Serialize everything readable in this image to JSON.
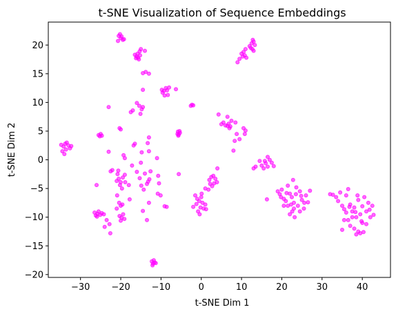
{
  "chart_data": {
    "type": "scatter",
    "title": "t-SNE Visualization of Sequence Embeddings",
    "xlabel": "t-SNE Dim 1",
    "ylabel": "t-SNE Dim 2",
    "xlim": [
      -38,
      47
    ],
    "ylim": [
      -20.5,
      24
    ],
    "xticks": [
      -30,
      -20,
      -10,
      0,
      10,
      20,
      30,
      40
    ],
    "yticks": [
      -20,
      -15,
      -10,
      -5,
      0,
      5,
      10,
      15,
      20
    ],
    "grid": false,
    "marker_color": "#ff00ff",
    "marker_alpha": 0.6,
    "points": [
      [
        -34.5,
        1.5
      ],
      [
        -34.2,
        2.3
      ],
      [
        -33.8,
        2.8
      ],
      [
        -33.4,
        3.0
      ],
      [
        -33.0,
        2.5
      ],
      [
        -32.6,
        2.0
      ],
      [
        -34.0,
        1.0
      ],
      [
        -33.6,
        1.8
      ],
      [
        -32.3,
        2.4
      ],
      [
        -34.8,
        2.6
      ],
      [
        -25.5,
        4.3
      ],
      [
        -25.0,
        4.5
      ],
      [
        -24.7,
        4.2
      ],
      [
        -25.2,
        4.1
      ],
      [
        -23.0,
        9.2
      ],
      [
        -23.0,
        1.4
      ],
      [
        -22.5,
        -2.0
      ],
      [
        -22.1,
        -1.8
      ],
      [
        -23.5,
        -10.5
      ],
      [
        -22.8,
        -11.2
      ],
      [
        -22.6,
        -12.8
      ],
      [
        -24.0,
        -11.7
      ],
      [
        -26.5,
        -9.2
      ],
      [
        -26.2,
        -9.7
      ],
      [
        -25.8,
        -9.4
      ],
      [
        -25.5,
        -9.0
      ],
      [
        -25.1,
        -9.6
      ],
      [
        -24.7,
        -9.3
      ],
      [
        -24.2,
        -9.5
      ],
      [
        -25.9,
        -9.9
      ],
      [
        -26.0,
        -4.4
      ],
      [
        -20.5,
        21.6
      ],
      [
        -20.0,
        21.2
      ],
      [
        -19.5,
        20.9
      ],
      [
        -20.2,
        21.9
      ],
      [
        -19.8,
        21.5
      ],
      [
        -19.2,
        21.0
      ],
      [
        -20.7,
        20.7
      ],
      [
        -20.3,
        5.5
      ],
      [
        -20.0,
        5.3
      ],
      [
        -19.3,
        0.8
      ],
      [
        -19.0,
        0.3
      ],
      [
        -20.8,
        -2.5
      ],
      [
        -20.5,
        -3.3
      ],
      [
        -20.0,
        -3.9
      ],
      [
        -19.5,
        -3.1
      ],
      [
        -20.2,
        -4.4
      ],
      [
        -19.0,
        -2.6
      ],
      [
        -19.7,
        -5.0
      ],
      [
        -21.0,
        -3.7
      ],
      [
        -20.6,
        -1.9
      ],
      [
        -18.9,
        -3.9
      ],
      [
        -20.9,
        -6.2
      ],
      [
        -20.4,
        -7.5
      ],
      [
        -20.0,
        -8.0
      ],
      [
        -19.6,
        -7.8
      ],
      [
        -21.0,
        -8.5
      ],
      [
        -20.3,
        -9.8
      ],
      [
        -19.8,
        -10.1
      ],
      [
        -19.4,
        -9.5
      ],
      [
        -20.0,
        -10.6
      ],
      [
        -19.1,
        -10.3
      ],
      [
        -18.0,
        -4.4
      ],
      [
        -17.8,
        -6.9
      ],
      [
        -17.5,
        8.3
      ],
      [
        -17.0,
        8.6
      ],
      [
        -16.5,
        2.8
      ],
      [
        -16.8,
        2.5
      ],
      [
        -17.2,
        -1.0
      ],
      [
        -16.0,
        -2.1
      ],
      [
        -16.5,
        18.3
      ],
      [
        -16.1,
        18.0
      ],
      [
        -15.7,
        17.8
      ],
      [
        -15.2,
        18.2
      ],
      [
        -15.5,
        17.5
      ],
      [
        -16.2,
        17.7
      ],
      [
        -15.8,
        18.5
      ],
      [
        -15.0,
        19.3
      ],
      [
        -15.3,
        18.9
      ],
      [
        -14.0,
        19.0
      ],
      [
        -13.8,
        15.3
      ],
      [
        -14.5,
        15.1
      ],
      [
        -16.0,
        9.9
      ],
      [
        -15.4,
        9.4
      ],
      [
        -14.8,
        8.8
      ],
      [
        -14.5,
        9.2
      ],
      [
        -15.1,
        8.0
      ],
      [
        -14.5,
        12.2
      ],
      [
        -13.0,
        15.0
      ],
      [
        -13.0,
        3.9
      ],
      [
        -13.3,
        2.9
      ],
      [
        -13.0,
        1.5
      ],
      [
        -14.8,
        1.3
      ],
      [
        -15.0,
        -0.5
      ],
      [
        -14.0,
        -2.4
      ],
      [
        -13.2,
        -3.8
      ],
      [
        -12.9,
        -3.4
      ],
      [
        -13.5,
        -4.2
      ],
      [
        -14.3,
        -5.2
      ],
      [
        -12.6,
        -2.0
      ],
      [
        -13.0,
        -7.5
      ],
      [
        -14.5,
        -8.9
      ],
      [
        -13.5,
        -10.5
      ],
      [
        -14.9,
        -4.5
      ],
      [
        -15.3,
        -3.2
      ],
      [
        -10.7,
        -2.8
      ],
      [
        -10.5,
        -4.1
      ],
      [
        -11.0,
        0.3
      ],
      [
        -10.8,
        -5.9
      ],
      [
        -10.1,
        -6.2
      ],
      [
        -9.1,
        -8.1
      ],
      [
        -8.6,
        -8.2
      ],
      [
        -12.3,
        -17.7
      ],
      [
        -12.0,
        -18.1
      ],
      [
        -11.6,
        -17.9
      ],
      [
        -12.1,
        -18.4
      ],
      [
        -11.3,
        -18.0
      ],
      [
        -11.8,
        -17.5
      ],
      [
        -9.8,
        12.2
      ],
      [
        -9.3,
        12.0
      ],
      [
        -8.8,
        12.5
      ],
      [
        -8.5,
        12.1
      ],
      [
        -9.1,
        11.2
      ],
      [
        -8.3,
        11.3
      ],
      [
        -9.6,
        11.7
      ],
      [
        -8.0,
        12.6
      ],
      [
        -6.3,
        12.3
      ],
      [
        -5.8,
        4.9
      ],
      [
        -5.6,
        4.4
      ],
      [
        -5.3,
        4.7
      ],
      [
        -5.7,
        4.2
      ],
      [
        -5.4,
        5.0
      ],
      [
        -5.9,
        4.5
      ],
      [
        -5.6,
        -2.5
      ],
      [
        -2.3,
        9.6
      ],
      [
        -2.0,
        9.5
      ],
      [
        -2.6,
        9.4
      ],
      [
        -1.5,
        -6.2
      ],
      [
        -1.0,
        -6.8
      ],
      [
        -0.5,
        -7.2
      ],
      [
        0.0,
        -6.5
      ],
      [
        0.3,
        -7.5
      ],
      [
        -0.2,
        -8.3
      ],
      [
        0.6,
        -8.5
      ],
      [
        -0.8,
        -9.0
      ],
      [
        1.0,
        -7.8
      ],
      [
        -1.2,
        -7.7
      ],
      [
        0.1,
        -5.9
      ],
      [
        -0.4,
        -9.5
      ],
      [
        1.2,
        -8.6
      ],
      [
        2.0,
        -3.5
      ],
      [
        2.5,
        -3.0
      ],
      [
        3.0,
        -2.8
      ],
      [
        3.5,
        -3.3
      ],
      [
        3.2,
        -4.1
      ],
      [
        2.7,
        -4.6
      ],
      [
        3.9,
        -3.9
      ],
      [
        2.2,
        -4.2
      ],
      [
        4.0,
        -1.5
      ],
      [
        1.0,
        -5.0
      ],
      [
        1.8,
        -5.2
      ],
      [
        -2.0,
        -8.2
      ],
      [
        4.3,
        7.9
      ],
      [
        5.0,
        6.2
      ],
      [
        5.5,
        6.5
      ],
      [
        6.0,
        6.0
      ],
      [
        6.5,
        5.9
      ],
      [
        6.8,
        6.3
      ],
      [
        7.0,
        5.5
      ],
      [
        7.5,
        6.8
      ],
      [
        7.2,
        5.8
      ],
      [
        6.5,
        7.5
      ],
      [
        8.5,
        6.5
      ],
      [
        8.8,
        4.5
      ],
      [
        8.3,
        3.3
      ],
      [
        8.0,
        1.6
      ],
      [
        9.5,
        3.6
      ],
      [
        10.5,
        5.5
      ],
      [
        11.0,
        5.1
      ],
      [
        10.8,
        4.5
      ],
      [
        9.0,
        17.0
      ],
      [
        9.5,
        17.6
      ],
      [
        10.0,
        18.5
      ],
      [
        10.5,
        18.8
      ],
      [
        11.0,
        19.3
      ],
      [
        10.3,
        18.0
      ],
      [
        11.2,
        17.8
      ],
      [
        10.8,
        18.2
      ],
      [
        12.0,
        19.8
      ],
      [
        12.5,
        20.3
      ],
      [
        13.0,
        20.6
      ],
      [
        12.7,
        19.3
      ],
      [
        13.3,
        20.0
      ],
      [
        12.3,
        19.5
      ],
      [
        13.0,
        19.0
      ],
      [
        12.8,
        20.9
      ],
      [
        13.0,
        -1.5
      ],
      [
        13.5,
        -1.2
      ],
      [
        14.5,
        -0.2
      ],
      [
        15.0,
        -1.0
      ],
      [
        15.5,
        -1.5
      ],
      [
        16.0,
        -0.6
      ],
      [
        16.5,
        -1.2
      ],
      [
        17.0,
        0.0
      ],
      [
        17.5,
        -0.5
      ],
      [
        18.0,
        -1.1
      ],
      [
        16.5,
        0.5
      ],
      [
        15.8,
        -0.2
      ],
      [
        16.3,
        -6.9
      ],
      [
        19.0,
        -5.5
      ],
      [
        19.5,
        -6.0
      ],
      [
        20.0,
        -5.2
      ],
      [
        20.5,
        -6.8
      ],
      [
        21.0,
        -7.2
      ],
      [
        21.5,
        -4.5
      ],
      [
        22.0,
        -5.9
      ],
      [
        22.5,
        -6.5
      ],
      [
        23.0,
        -7.5
      ],
      [
        23.5,
        -6.0
      ],
      [
        24.0,
        -8.0
      ],
      [
        24.5,
        -5.5
      ],
      [
        25.0,
        -7.0
      ],
      [
        23.0,
        -8.5
      ],
      [
        22.0,
        -9.5
      ],
      [
        24.5,
        -9.0
      ],
      [
        25.5,
        -8.5
      ],
      [
        21.5,
        -8.0
      ],
      [
        20.5,
        -8.0
      ],
      [
        22.8,
        -3.5
      ],
      [
        23.6,
        -4.8
      ],
      [
        24.8,
        -6.3
      ],
      [
        26.0,
        -6.2
      ],
      [
        25.6,
        -7.5
      ],
      [
        26.5,
        -7.4
      ],
      [
        27.0,
        -5.4
      ],
      [
        22.3,
        -7.8
      ],
      [
        23.2,
        -10.0
      ],
      [
        22.6,
        -9.0
      ],
      [
        19.8,
        -6.5
      ],
      [
        21.2,
        -5.8
      ],
      [
        32.0,
        -6.0
      ],
      [
        32.7,
        -6.1
      ],
      [
        33.5,
        -6.5
      ],
      [
        34.0,
        -7.2
      ],
      [
        34.5,
        -5.7
      ],
      [
        35.0,
        -8.0
      ],
      [
        35.5,
        -8.6
      ],
      [
        36.0,
        -6.2
      ],
      [
        36.5,
        -5.1
      ],
      [
        37.0,
        -7.8
      ],
      [
        37.5,
        -9.0
      ],
      [
        38.0,
        -8.3
      ],
      [
        38.5,
        -10.0
      ],
      [
        39.0,
        -7.0
      ],
      [
        39.5,
        -9.5
      ],
      [
        40.0,
        -8.1
      ],
      [
        40.5,
        -6.5
      ],
      [
        41.0,
        -9.0
      ],
      [
        41.5,
        -7.5
      ],
      [
        42.0,
        -10.0
      ],
      [
        37.0,
        -11.5
      ],
      [
        38.0,
        -12.0
      ],
      [
        39.0,
        -12.5
      ],
      [
        38.5,
        -13.0
      ],
      [
        39.5,
        -12.8
      ],
      [
        36.5,
        -10.5
      ],
      [
        40.0,
        -11.0
      ],
      [
        37.5,
        -10.0
      ],
      [
        41.0,
        -11.2
      ],
      [
        38.3,
        -9.1
      ],
      [
        35.5,
        -10.5
      ],
      [
        36.0,
        -9.2
      ],
      [
        38.8,
        -6.2
      ],
      [
        42.5,
        -8.0
      ],
      [
        42.8,
        -9.6
      ],
      [
        40.3,
        -12.6
      ],
      [
        35.0,
        -12.2
      ],
      [
        39.8,
        -10.7
      ],
      [
        41.8,
        -8.7
      ],
      [
        36.8,
        -8.2
      ]
    ]
  }
}
